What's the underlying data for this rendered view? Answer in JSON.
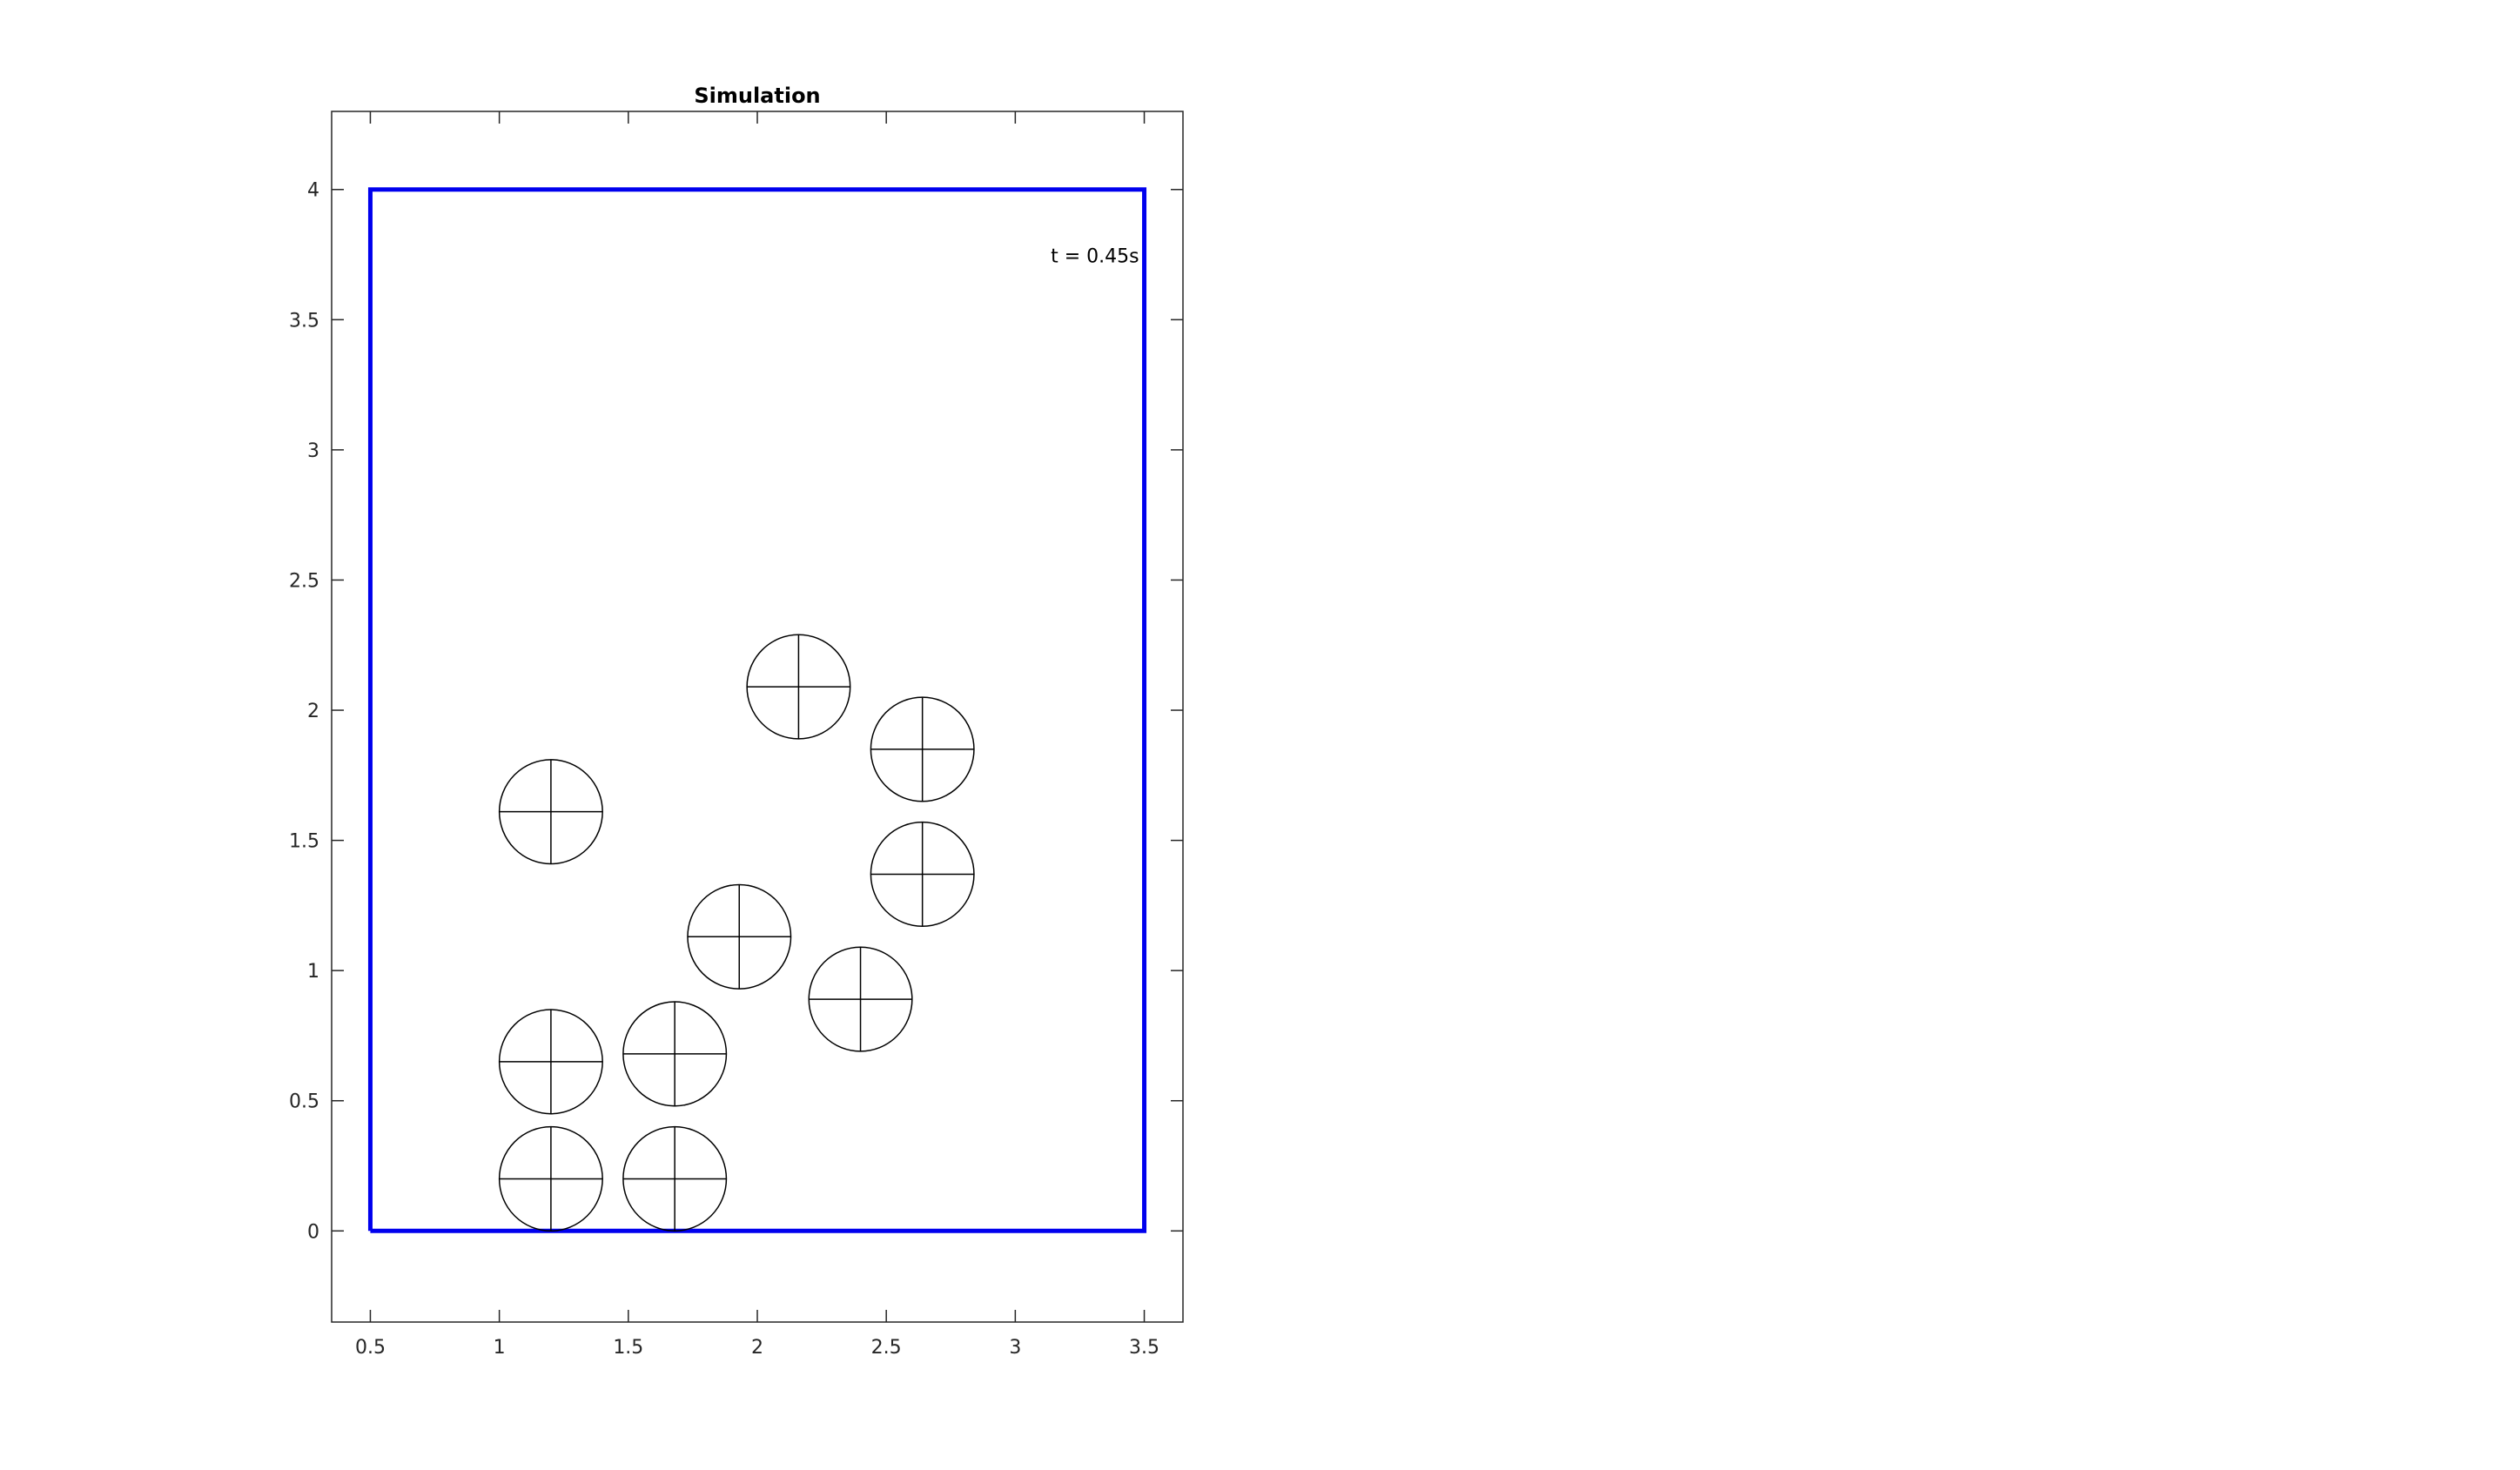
{
  "chart_data": {
    "type": "scatter",
    "title": "Simulation",
    "xlabel": "",
    "ylabel": "",
    "xlim": [
      0.35,
      3.65
    ],
    "ylim": [
      -0.35,
      4.3
    ],
    "xticks": [
      0.5,
      1,
      1.5,
      2,
      2.5,
      3,
      3.5
    ],
    "yticks": [
      0,
      0.5,
      1,
      1.5,
      2,
      2.5,
      3,
      3.5,
      4
    ],
    "xtick_labels": [
      "0.5",
      "1",
      "1.5",
      "2",
      "2.5",
      "3",
      "3.5"
    ],
    "ytick_labels": [
      "0",
      "0.5",
      "1",
      "1.5",
      "2",
      "2.5",
      "3",
      "3.5",
      "4"
    ],
    "grid": false,
    "legend": "none",
    "annotation": {
      "text": "t = 0.45s",
      "x": 3.48,
      "y": 3.72
    },
    "container": {
      "x": [
        0.5,
        3.5,
        3.5,
        0.5,
        0.5
      ],
      "y": [
        0,
        0,
        4,
        4,
        0
      ],
      "color": "#0000ee"
    },
    "particle_radius": 0.2,
    "particle_color": "#000000",
    "particles": [
      {
        "x": 1.2,
        "y": 0.2
      },
      {
        "x": 1.68,
        "y": 0.2
      },
      {
        "x": 1.2,
        "y": 0.65
      },
      {
        "x": 1.68,
        "y": 0.68
      },
      {
        "x": 2.4,
        "y": 0.89
      },
      {
        "x": 1.93,
        "y": 1.13
      },
      {
        "x": 1.2,
        "y": 1.61
      },
      {
        "x": 2.64,
        "y": 1.37
      },
      {
        "x": 2.64,
        "y": 1.85
      },
      {
        "x": 2.16,
        "y": 2.09
      }
    ]
  }
}
